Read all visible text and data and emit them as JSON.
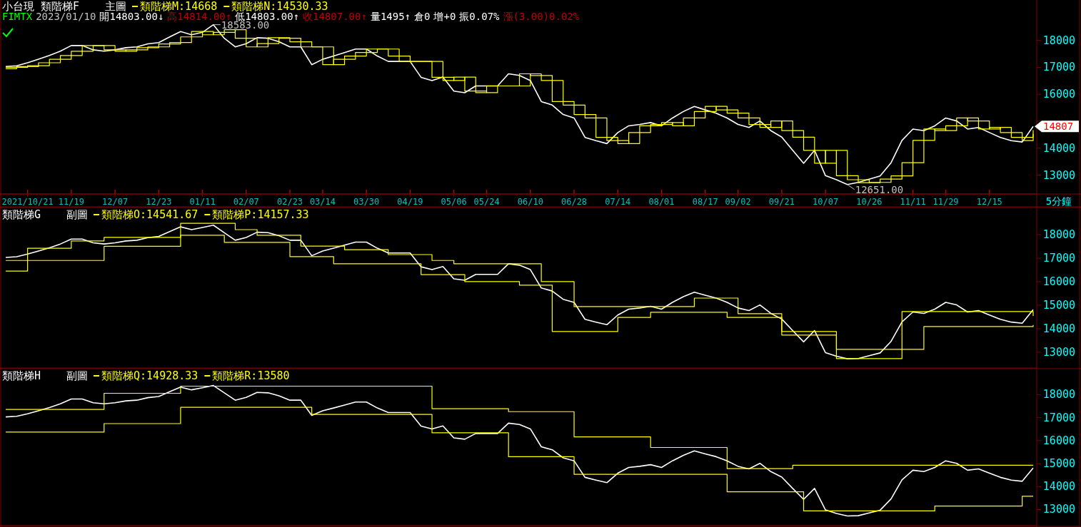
{
  "chart_data": [
    {
      "type": "line",
      "title": "小台現 類階梯F",
      "subtitle": "主圖",
      "xlabel": "5分鐘",
      "legend": "top left",
      "categories": [
        null,
        null,
        "2021/10/21",
        null,
        null,
        null,
        "11/19",
        null,
        null,
        null,
        "12/07",
        null,
        null,
        null,
        "12/23",
        null,
        null,
        null,
        "01/11",
        null,
        null,
        null,
        "02/07",
        null,
        null,
        null,
        "02/23",
        null,
        null,
        "03/14",
        null,
        null,
        null,
        "03/30",
        null,
        null,
        null,
        "04/19",
        null,
        null,
        null,
        "05/06",
        null,
        null,
        "05/24",
        null,
        null,
        null,
        "06/10",
        null,
        null,
        null,
        "06/28",
        null,
        null,
        null,
        "07/14",
        null,
        null,
        null,
        "08/01",
        null,
        null,
        null,
        "08/17",
        null,
        null,
        "09/02",
        null,
        null,
        null,
        "09/21",
        null,
        null,
        null,
        "10/07",
        null,
        null,
        null,
        "10/26",
        null,
        null,
        null,
        "11/11",
        null,
        null,
        "11/29",
        null,
        null,
        null,
        "12/15",
        null,
        null,
        null,
        null
      ],
      "ylim": [
        12300,
        19500
      ],
      "yticks": [
        13000,
        14000,
        {
          "value": 15000,
          "label": null
        },
        16000,
        17000,
        18000
      ],
      "series": [
        {
          "color": "#ffffff",
          "values": [
            17030,
            17060,
            17170,
            17300,
            17440,
            17600,
            17810,
            17810,
            17650,
            17600,
            17650,
            17730,
            17760,
            17870,
            17920,
            18130,
            18330,
            18210,
            18300,
            18583,
            18080,
            17760,
            17880,
            18100,
            18080,
            17950,
            17760,
            17760,
            17100,
            17300,
            17420,
            17550,
            17680,
            17680,
            17420,
            17220,
            17220,
            17220,
            16630,
            16510,
            16640,
            16120,
            16060,
            16310,
            16310,
            16310,
            16760,
            16700,
            16510,
            15730,
            15600,
            15250,
            15120,
            14400,
            14280,
            14170,
            14580,
            14830,
            14880,
            14950,
            14830,
            15120,
            15360,
            15550,
            15420,
            15300,
            15120,
            14880,
            14770,
            15010,
            14650,
            14410,
            13920,
            13440,
            13920,
            12980,
            12830,
            12651,
            12730,
            12850,
            12970,
            13460,
            14290,
            14710,
            14650,
            14830,
            15120,
            15010,
            14710,
            14770,
            14580,
            14400,
            14280,
            14230,
            14807
          ],
          "value_labels": [
            null,
            null,
            null,
            null,
            null,
            null,
            null,
            null,
            null,
            null,
            null,
            null,
            null,
            null,
            null,
            null,
            null,
            null,
            null,
            "18583.00",
            null,
            null,
            null,
            null,
            null,
            null,
            null,
            null,
            null,
            null,
            null,
            null,
            null,
            null,
            null,
            null,
            null,
            null,
            null,
            null,
            null,
            null,
            null,
            null,
            null,
            null,
            null,
            null,
            null,
            null,
            null,
            null,
            null,
            null,
            null,
            null,
            null,
            null,
            null,
            null,
            null,
            null,
            null,
            null,
            null,
            null,
            null,
            null,
            null,
            null,
            null,
            null,
            null,
            null,
            null,
            null,
            null,
            "12651.00",
            null,
            null,
            null,
            null,
            null,
            null,
            null,
            null,
            null,
            null,
            null,
            null,
            null,
            null,
            null,
            null,
            "14807"
          ]
        },
        {
          "name": "類階梯M:14668",
          "type": "step",
          "color": "#ffff00",
          "values": [
            17000,
            17030,
            17060,
            17170,
            17300,
            17440,
            17600,
            17810,
            17810,
            17650,
            17600,
            17650,
            17730,
            17760,
            17870,
            17920,
            18130,
            18330,
            18210,
            18300,
            18400,
            18080,
            17760,
            17880,
            18100,
            18080,
            17950,
            17760,
            17760,
            17100,
            17300,
            17420,
            17550,
            17680,
            17680,
            17420,
            17220,
            17220,
            17220,
            16630,
            16510,
            16640,
            16120,
            16060,
            16310,
            16310,
            16310,
            16760,
            16700,
            16510,
            15730,
            15600,
            15250,
            15120,
            14400,
            14280,
            14170,
            14580,
            14830,
            14880,
            14950,
            14830,
            15120,
            15360,
            15550,
            15420,
            15300,
            15120,
            14880,
            14770,
            15010,
            14650,
            14410,
            13920,
            13440,
            13920,
            12980,
            12830,
            12720,
            12730,
            12850,
            12970,
            13460,
            14290,
            14710,
            14650,
            14830,
            15120,
            15010,
            14710,
            14770,
            14580,
            14400,
            14280,
            14668
          ]
        },
        {
          "name": "類階梯N:14530.33",
          "type": "step",
          "color": "#ffff00",
          "values": [
            16950,
            17000,
            17030,
            17060,
            17170,
            17300,
            17440,
            17600,
            17810,
            17810,
            17650,
            17600,
            17650,
            17730,
            17760,
            17870,
            17920,
            18130,
            18330,
            18210,
            18300,
            18400,
            18080,
            17760,
            17880,
            18100,
            18080,
            17950,
            17760,
            17760,
            17100,
            17300,
            17420,
            17550,
            17680,
            17680,
            17420,
            17220,
            17220,
            17220,
            16630,
            16510,
            16640,
            16120,
            16060,
            16310,
            16310,
            16310,
            16760,
            16700,
            16510,
            15730,
            15600,
            15250,
            15120,
            14400,
            14280,
            14170,
            14580,
            14830,
            14880,
            14950,
            14830,
            15120,
            15360,
            15550,
            15420,
            15300,
            15120,
            14880,
            14770,
            15010,
            14650,
            14410,
            13920,
            13440,
            13920,
            12980,
            12830,
            12720,
            12730,
            12850,
            12970,
            13460,
            14290,
            14710,
            14650,
            14830,
            15120,
            15010,
            14710,
            14770,
            14580,
            14400,
            14530.33
          ]
        }
      ],
      "annotations": [
        "FIMTX",
        "2023/01/10",
        "開14803.00↓",
        "高14814.00↑",
        "低14803.00↑",
        "收14807.00↑",
        "量1495↑",
        "倉0",
        "增+0",
        "振0.07%",
        "漲(3.00)0.02%"
      ]
    },
    {
      "type": "line",
      "title": "類階梯G",
      "subtitle": "副圖",
      "legend": "top left",
      "tick_labels": "y",
      "categories": [
        null,
        null,
        null,
        null,
        null,
        null,
        null,
        null,
        null,
        null,
        null,
        null,
        null,
        null,
        null,
        null,
        null,
        null,
        null,
        null,
        null,
        null,
        null,
        null,
        null,
        null,
        null,
        null,
        null,
        null,
        null,
        null,
        null,
        null,
        null,
        null,
        null,
        null,
        null,
        null,
        null,
        null,
        null,
        null,
        null,
        null,
        null,
        null,
        null,
        null,
        null,
        null,
        null,
        null,
        null,
        null,
        null,
        null,
        null,
        null,
        null,
        null,
        null,
        null,
        null,
        null,
        null,
        null,
        null,
        null,
        null,
        null,
        null,
        null,
        null,
        null,
        null,
        null,
        null,
        null,
        null,
        null,
        null,
        null,
        null,
        null,
        null,
        null,
        null,
        null,
        null,
        null,
        null,
        null,
        null
      ],
      "ylim": [
        12330,
        19120
      ],
      "yticks": [
        13000,
        14000,
        15000,
        16000,
        17000,
        18000
      ],
      "series": [
        {
          "color": "#ffffff",
          "values": [
            17030,
            17060,
            17170,
            17300,
            17440,
            17600,
            17810,
            17810,
            17650,
            17600,
            17650,
            17730,
            17760,
            17870,
            17920,
            18130,
            18330,
            18210,
            18300,
            18400,
            18080,
            17760,
            17880,
            18100,
            18080,
            17950,
            17760,
            17760,
            17100,
            17300,
            17420,
            17550,
            17680,
            17680,
            17420,
            17220,
            17220,
            17220,
            16630,
            16510,
            16640,
            16120,
            16060,
            16310,
            16310,
            16310,
            16760,
            16700,
            16510,
            15730,
            15600,
            15250,
            15120,
            14400,
            14280,
            14170,
            14580,
            14830,
            14880,
            14950,
            14830,
            15120,
            15360,
            15550,
            15420,
            15300,
            15120,
            14880,
            14770,
            15010,
            14650,
            14410,
            13920,
            13440,
            13920,
            12980,
            12830,
            12720,
            12730,
            12850,
            12970,
            13460,
            14290,
            14710,
            14650,
            14830,
            15120,
            15010,
            14710,
            14770,
            14580,
            14400,
            14280,
            14230,
            14807
          ]
        },
        {
          "name": "類階梯O:14541.67",
          "type": "step",
          "color": "#ffff00",
          "values": [
            16900,
            16900,
            17420,
            17420,
            17420,
            17420,
            17730,
            17730,
            17730,
            17880,
            17880,
            17880,
            17880,
            17880,
            17880,
            17880,
            18480,
            18480,
            18480,
            18480,
            18480,
            18210,
            18210,
            17970,
            17970,
            17970,
            17970,
            17510,
            17510,
            17510,
            17510,
            17360,
            17360,
            17360,
            17360,
            17150,
            17150,
            17150,
            17150,
            16900,
            16900,
            16760,
            16760,
            16760,
            16760,
            16760,
            16760,
            16760,
            16760,
            16000,
            16000,
            16000,
            14940,
            14940,
            14940,
            14940,
            14940,
            14940,
            14940,
            14940,
            14940,
            14940,
            14940,
            15300,
            15300,
            15300,
            15300,
            14640,
            14640,
            14640,
            14640,
            13880,
            13880,
            13880,
            13880,
            13880,
            13120,
            13120,
            13120,
            13120,
            13120,
            13120,
            14730,
            14730,
            14730,
            14730,
            14730,
            14730,
            14730,
            14730,
            14730,
            14730,
            14730,
            14730,
            14541.67
          ]
        },
        {
          "name": "類階梯P:14157.33",
          "type": "step",
          "color": "#ffff00",
          "values": [
            16450,
            16450,
            16900,
            16900,
            16900,
            16900,
            16900,
            16900,
            16900,
            17500,
            17500,
            17500,
            17500,
            17500,
            17500,
            17500,
            17970,
            17970,
            17970,
            17970,
            17670,
            17670,
            17670,
            17670,
            17670,
            17670,
            17060,
            17060,
            17060,
            17060,
            16760,
            16760,
            16760,
            16760,
            16760,
            16760,
            16760,
            16760,
            16300,
            16300,
            16300,
            16300,
            16000,
            16000,
            16000,
            16000,
            16000,
            15850,
            15850,
            15850,
            13880,
            13880,
            13880,
            13880,
            13880,
            13880,
            14480,
            14480,
            14480,
            14700,
            14700,
            14700,
            14700,
            14700,
            14700,
            14700,
            14480,
            14480,
            14480,
            14480,
            14480,
            13730,
            13730,
            13730,
            13730,
            13730,
            12730,
            12730,
            12730,
            12730,
            12730,
            12730,
            13120,
            13120,
            14090,
            14090,
            14090,
            14090,
            14090,
            14090,
            14090,
            14090,
            14090,
            14090,
            14157.33
          ]
        }
      ]
    },
    {
      "type": "line",
      "title": "類階梯H",
      "subtitle": "副圖",
      "legend": "top left",
      "tick_labels": "y",
      "categories": [
        null,
        null,
        null,
        null,
        null,
        null,
        null,
        null,
        null,
        null,
        null,
        null,
        null,
        null,
        null,
        null,
        null,
        null,
        null,
        null,
        null,
        null,
        null,
        null,
        null,
        null,
        null,
        null,
        null,
        null,
        null,
        null,
        null,
        null,
        null,
        null,
        null,
        null,
        null,
        null,
        null,
        null,
        null,
        null,
        null,
        null,
        null,
        null,
        null,
        null,
        null,
        null,
        null,
        null,
        null,
        null,
        null,
        null,
        null,
        null,
        null,
        null,
        null,
        null,
        null,
        null,
        null,
        null,
        null,
        null,
        null,
        null,
        null,
        null,
        null,
        null,
        null,
        null,
        null,
        null,
        null,
        null,
        null,
        null,
        null,
        null,
        null,
        null,
        null,
        null,
        null,
        null,
        null,
        null,
        null
      ],
      "ylim": [
        12300,
        19100
      ],
      "yticks": [
        13000,
        14000,
        15000,
        16000,
        17000,
        18000
      ],
      "series": [
        {
          "color": "#ffffff",
          "values": [
            17030,
            17060,
            17170,
            17300,
            17440,
            17600,
            17810,
            17810,
            17650,
            17600,
            17650,
            17730,
            17760,
            17870,
            17920,
            18130,
            18330,
            18210,
            18300,
            18400,
            18080,
            17760,
            17880,
            18100,
            18080,
            17950,
            17760,
            17760,
            17100,
            17300,
            17420,
            17550,
            17680,
            17680,
            17420,
            17220,
            17220,
            17220,
            16630,
            16510,
            16640,
            16120,
            16060,
            16310,
            16310,
            16310,
            16760,
            16700,
            16510,
            15730,
            15600,
            15250,
            15120,
            14400,
            14280,
            14170,
            14580,
            14830,
            14880,
            14950,
            14830,
            15120,
            15360,
            15550,
            15420,
            15300,
            15120,
            14880,
            14770,
            15010,
            14650,
            14410,
            13920,
            13440,
            13920,
            12980,
            12830,
            12720,
            12730,
            12850,
            12970,
            13460,
            14290,
            14710,
            14650,
            14830,
            15120,
            15010,
            14710,
            14770,
            14580,
            14400,
            14280,
            14230,
            14807
          ]
        },
        {
          "name": "類階梯Q:14928.33",
          "type": "step",
          "color": "#ffff00",
          "values": [
            17360,
            17360,
            17360,
            17360,
            17360,
            17360,
            17360,
            17360,
            17360,
            18060,
            18060,
            18060,
            18060,
            18060,
            18060,
            18060,
            18370,
            18370,
            18370,
            18370,
            18370,
            18370,
            18370,
            18370,
            18370,
            18370,
            18370,
            18370,
            18370,
            18370,
            18370,
            18370,
            18370,
            18370,
            18370,
            18370,
            18370,
            18370,
            18370,
            17390,
            17390,
            17390,
            17390,
            17390,
            17390,
            17390,
            17260,
            17260,
            17260,
            17260,
            17260,
            17260,
            16160,
            16160,
            16160,
            16160,
            16160,
            16160,
            16160,
            15700,
            15700,
            15700,
            15700,
            15700,
            15700,
            15700,
            14780,
            14780,
            14780,
            14780,
            14780,
            14780,
            14930,
            14930,
            14930,
            14930,
            14930,
            14930,
            14930,
            14930,
            14930,
            14930,
            14930,
            14930,
            14930,
            14930,
            14930,
            14930,
            14930,
            14930,
            14930,
            14930,
            14930,
            14930,
            14928.33
          ]
        },
        {
          "name": "類階梯R:13580",
          "type": "step",
          "color": "#ffff00",
          "values": [
            16370,
            16370,
            16370,
            16370,
            16370,
            16370,
            16370,
            16370,
            16370,
            16740,
            16740,
            16740,
            16740,
            16740,
            16740,
            16740,
            17450,
            17450,
            17450,
            17450,
            17450,
            17450,
            17450,
            17450,
            17450,
            17450,
            17450,
            17450,
            17140,
            17140,
            17140,
            17140,
            17140,
            17140,
            17140,
            17140,
            17140,
            17140,
            17140,
            16340,
            16340,
            16340,
            16340,
            16340,
            16340,
            16340,
            15300,
            15300,
            15300,
            15300,
            15300,
            15300,
            14530,
            14530,
            14530,
            14530,
            14530,
            14530,
            14530,
            14530,
            14530,
            14530,
            14530,
            14530,
            14530,
            14530,
            13770,
            13770,
            13770,
            13770,
            13770,
            13770,
            13770,
            12940,
            12940,
            12940,
            12940,
            12940,
            12940,
            12940,
            12940,
            12940,
            12940,
            12940,
            12940,
            13150,
            13150,
            13150,
            13150,
            13150,
            13150,
            13150,
            13150,
            13580,
            13580
          ]
        }
      ]
    }
  ]
}
